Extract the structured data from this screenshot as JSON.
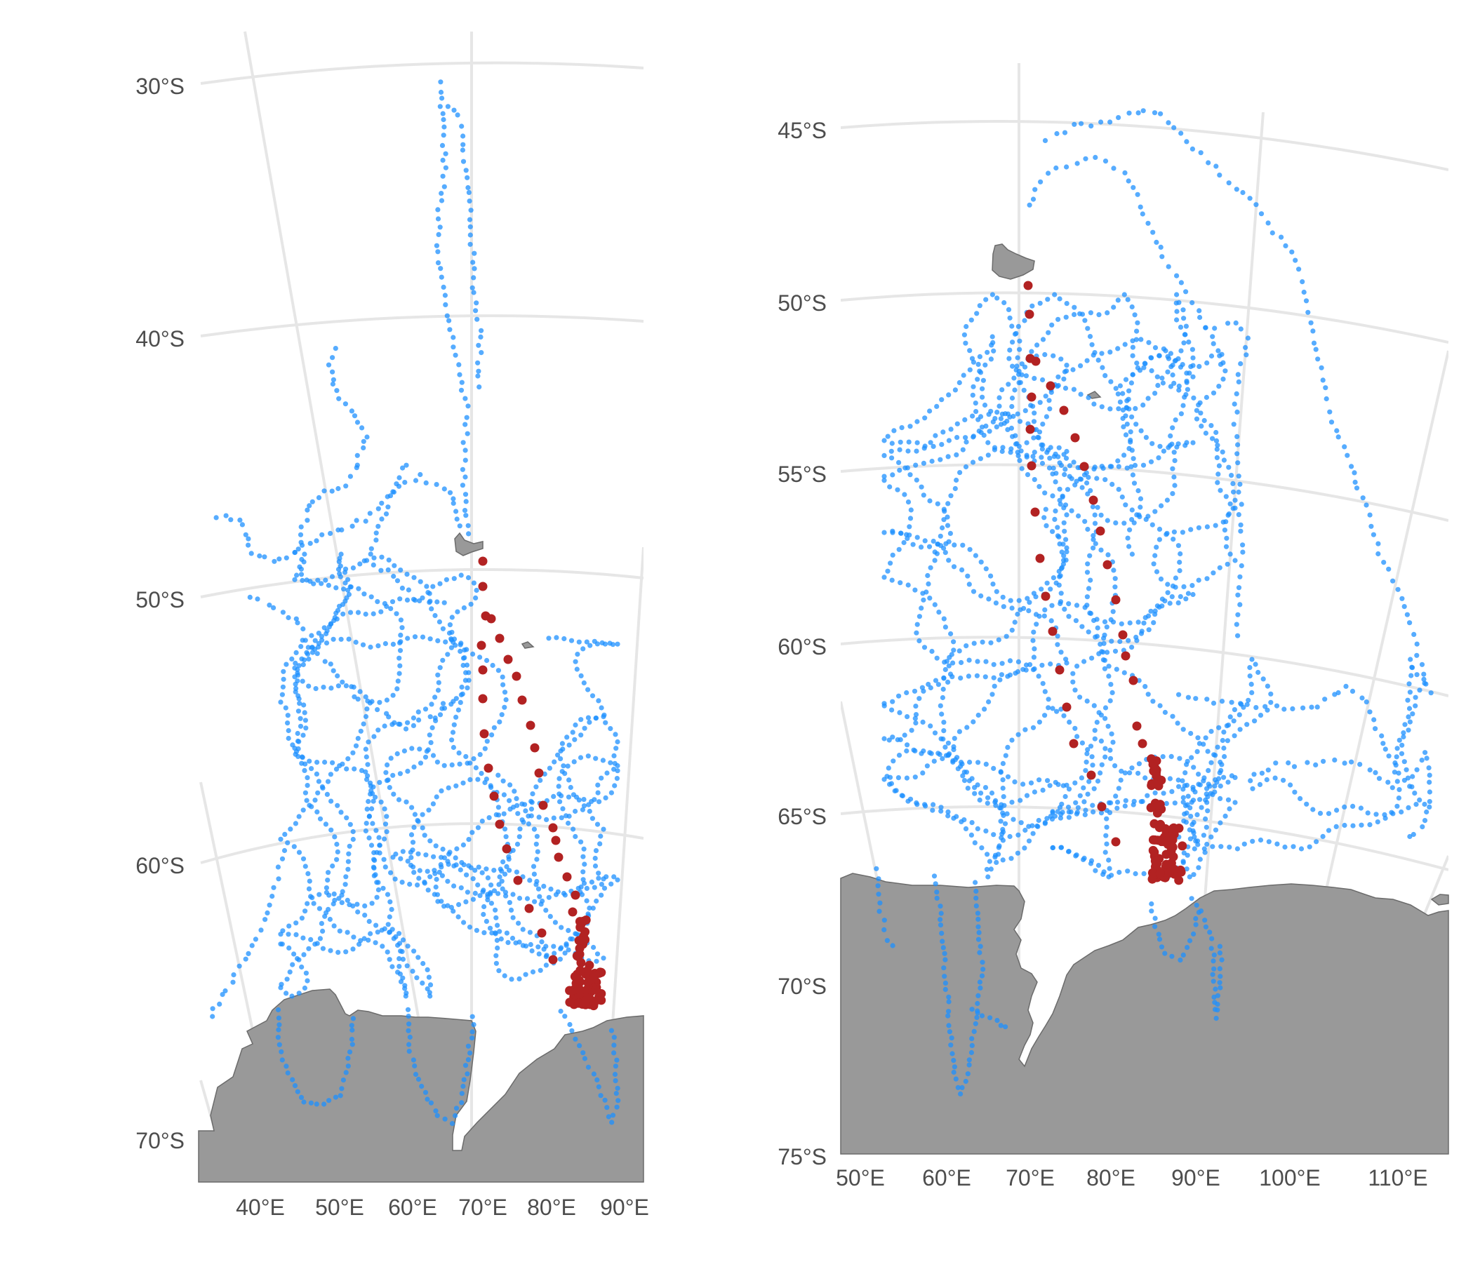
{
  "panels": [
    {
      "lat_labels": [
        "30°S",
        "40°S",
        "50°S",
        "60°S",
        "70°S"
      ],
      "lon_labels": [
        "40°E",
        "50°E",
        "60°E",
        "70°E",
        "80°E",
        "90°E"
      ],
      "colors": {
        "tracks": "#1e90ff",
        "highlight": "#b22222",
        "land": "#999999",
        "graticule": "#e6e6e6"
      }
    },
    {
      "lat_labels": [
        "45°S",
        "50°S",
        "55°S",
        "60°S",
        "65°S",
        "70°S",
        "75°S"
      ],
      "lon_labels": [
        "50°E",
        "60°E",
        "70°E",
        "80°E",
        "90°E",
        "100°E",
        "110°E"
      ],
      "colors": {
        "tracks": "#1e90ff",
        "highlight": "#b22222",
        "land": "#999999",
        "graticule": "#e6e6e6"
      }
    }
  ]
}
